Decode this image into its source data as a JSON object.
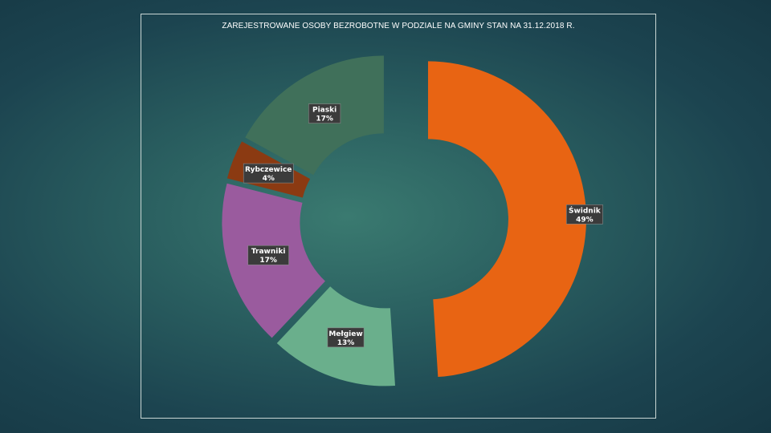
{
  "chart_data": {
    "type": "pie",
    "title": "ZAREJESTROWANE OSOBY BEZROBOTNE W PODZIALE NA GMINY STAN NA 31.12.2018 R.",
    "slices": [
      {
        "label": "Świdnik",
        "value": 49,
        "value_label": "49%",
        "color": "#e86413"
      },
      {
        "label": "Mełgiew",
        "value": 13,
        "value_label": "13%",
        "color": "#6aaf8c"
      },
      {
        "label": "Trawniki",
        "value": 17,
        "value_label": "17%",
        "color": "#9a5b9e"
      },
      {
        "label": "Rybczewice",
        "value": 4,
        "value_label": "4%",
        "color": "#8b3a12"
      },
      {
        "label": "Piaski",
        "value": 17,
        "value_label": "17%",
        "color": "#40705a"
      }
    ]
  }
}
